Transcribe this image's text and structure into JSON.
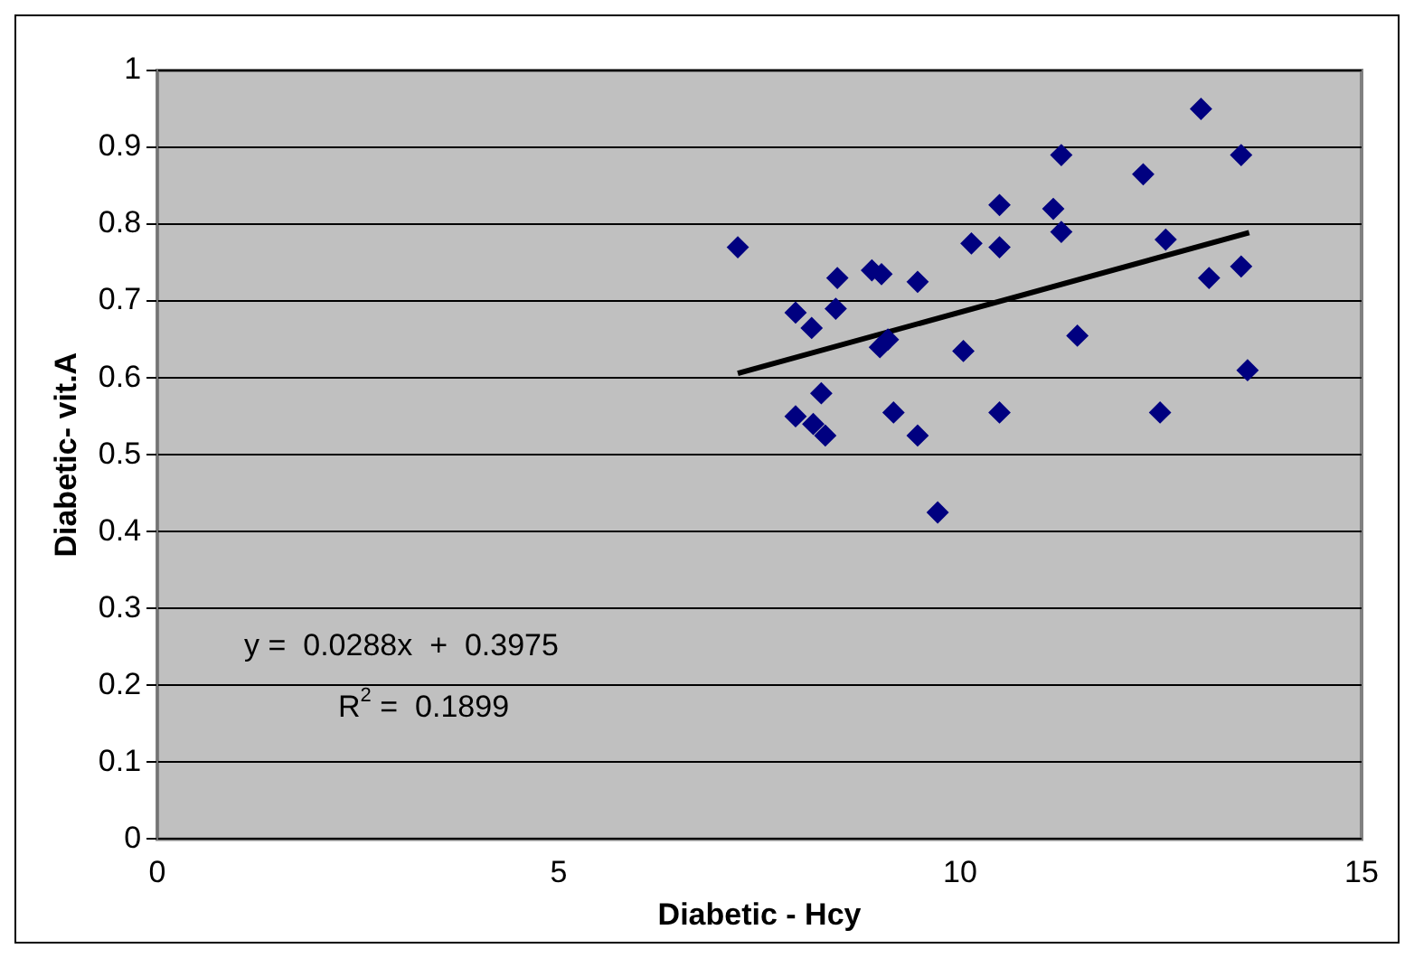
{
  "chart_data": {
    "type": "scatter",
    "xlabel": "Diabetic - Hcy",
    "ylabel": "Diabetic- vit.A",
    "grid": "y",
    "legend": false,
    "xlim": [
      0,
      15
    ],
    "xticks": [
      0,
      5,
      10,
      15
    ],
    "ylim": [
      0,
      1
    ],
    "yticks": [
      0,
      0.1,
      0.2,
      0.3,
      0.4,
      0.5,
      0.6,
      0.7,
      0.8,
      0.9,
      1
    ],
    "annotations": [
      "y =  0.0288x  +  0.3975",
      "R$^{2}$ =  0.1899"
    ],
    "series": [
      {
        "marker": "diamond",
        "color": "#000080",
        "x": [
          7.23,
          7.95,
          8.15,
          8.47,
          8.45,
          7.95,
          8.17,
          8.27,
          8.32,
          8.9,
          9.02,
          9.0,
          9.1,
          9.17,
          9.47,
          9.47,
          9.72,
          10.14,
          10.04,
          10.49,
          10.49,
          10.49,
          11.16,
          11.26,
          11.26,
          11.46,
          12.28,
          12.56,
          12.49,
          13.0,
          13.1,
          13.5,
          13.5,
          13.58
        ],
        "values": [
          0.77,
          0.685,
          0.665,
          0.73,
          0.69,
          0.55,
          0.54,
          0.58,
          0.525,
          0.74,
          0.735,
          0.64,
          0.65,
          0.555,
          0.525,
          0.725,
          0.425,
          0.775,
          0.635,
          0.825,
          0.77,
          0.555,
          0.82,
          0.79,
          0.89,
          0.655,
          0.865,
          0.78,
          0.555,
          0.95,
          0.73,
          0.89,
          0.745,
          0.61
        ]
      },
      {
        "type": "line",
        "marker": "none",
        "color": "#000000",
        "x": [
          7.23,
          13.6
        ],
        "values": [
          0.606,
          0.789
        ]
      }
    ]
  }
}
